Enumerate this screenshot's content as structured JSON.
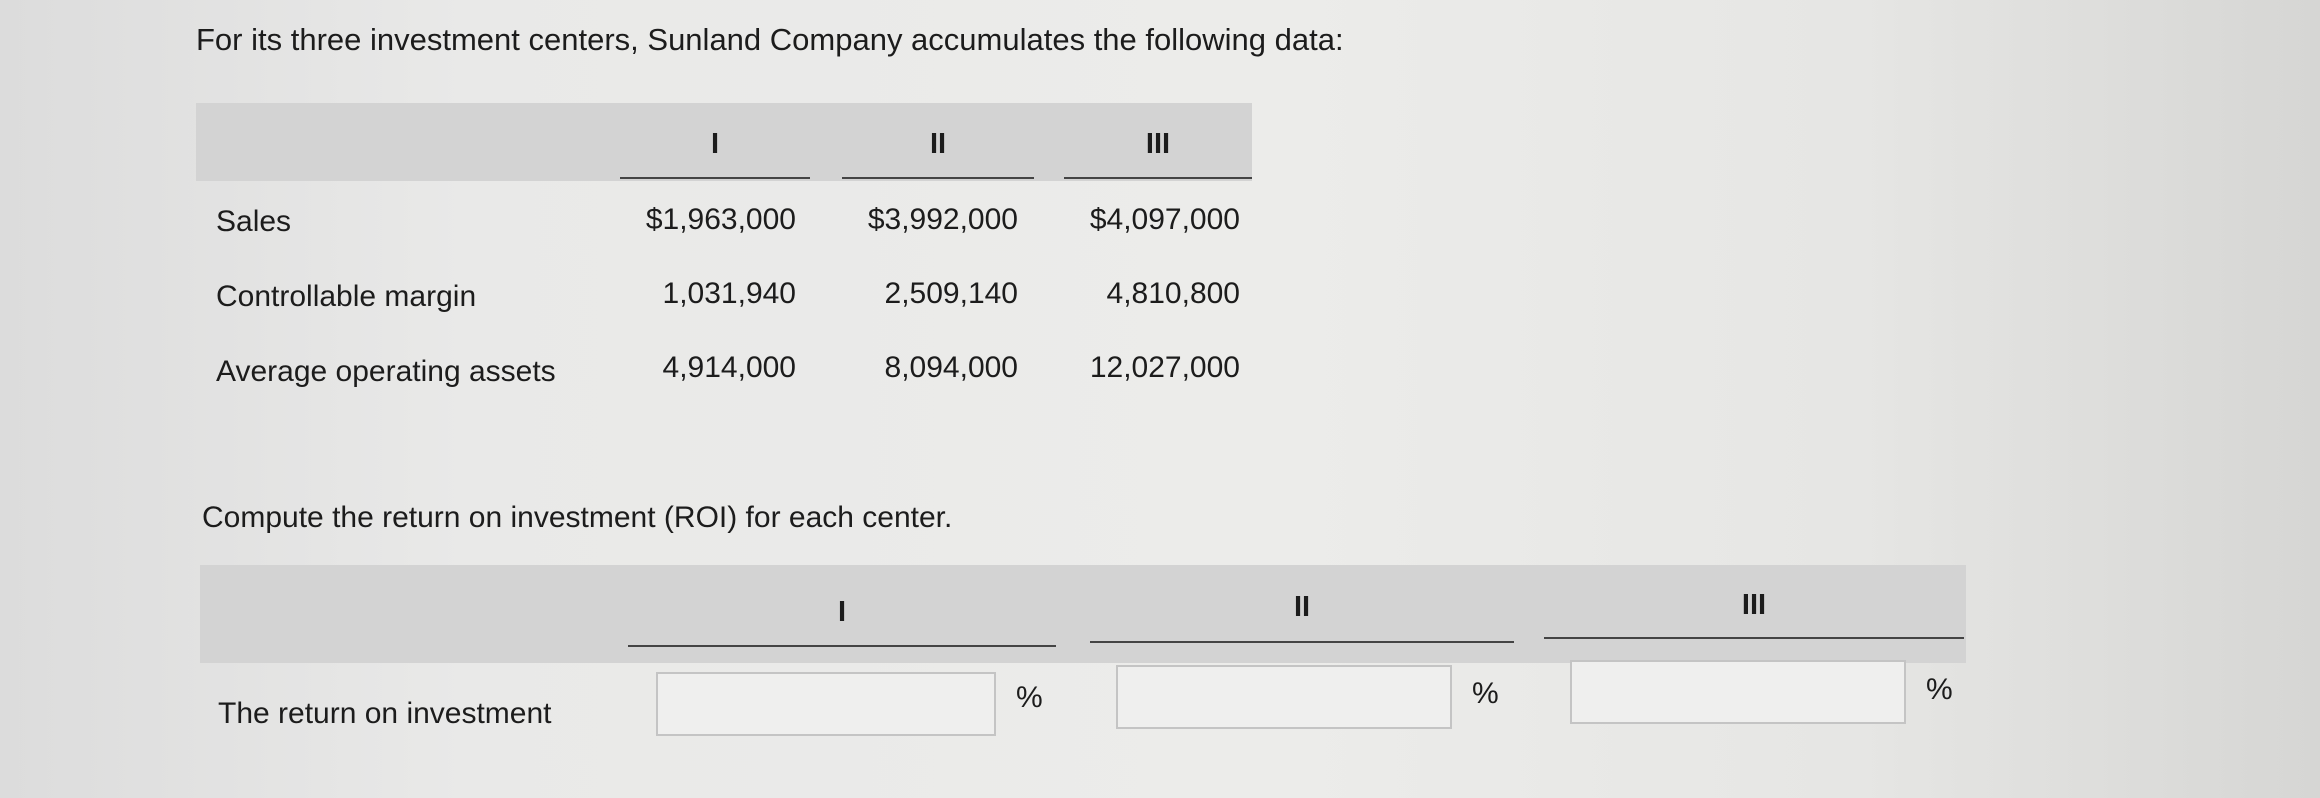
{
  "intro": "For its three investment centers, Sunland Company accumulates the following data:",
  "data_table": {
    "columns": [
      "I",
      "II",
      "III"
    ],
    "rows": [
      {
        "label": "Sales",
        "values": [
          "$1,963,000",
          "$3,992,000",
          "$4,097,000"
        ]
      },
      {
        "label": "Controllable margin",
        "values": [
          "1,031,940",
          "2,509,140",
          "4,810,800"
        ]
      },
      {
        "label": "Average operating assets",
        "values": [
          "4,914,000",
          "8,094,000",
          "12,027,000"
        ]
      }
    ]
  },
  "question": "Compute the return on investment (ROI) for each center.",
  "answer_table": {
    "columns": [
      "I",
      "II",
      "III"
    ],
    "row_label": "The return on investment",
    "inputs": [
      {
        "value": "",
        "unit": "%"
      },
      {
        "value": "",
        "unit": "%"
      },
      {
        "value": "",
        "unit": "%"
      }
    ]
  }
}
